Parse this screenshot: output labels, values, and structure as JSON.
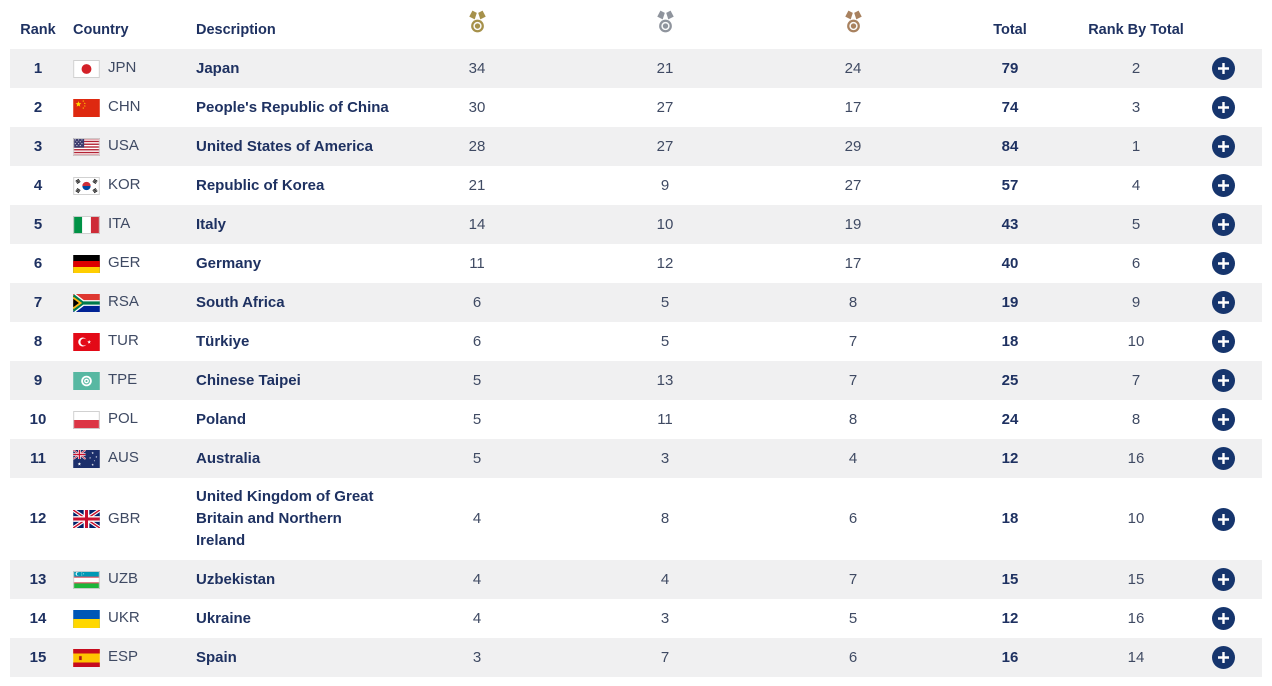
{
  "table": {
    "columns": {
      "rank": "Rank",
      "country": "Country",
      "description": "Description",
      "gold_icon": "gold-medal-icon",
      "silver_icon": "silver-medal-icon",
      "bronze_icon": "bronze-medal-icon",
      "total": "Total",
      "rank_by_total": "Rank By Total",
      "expand_icon": "plus-icon"
    },
    "colors": {
      "navy": "#1e3161",
      "slate": "#3f4a63",
      "stripe": "#f0f0f1",
      "gold": "#a6914b",
      "silver": "#8f949d",
      "bronze": "#a8815f",
      "button": "#16356d"
    },
    "rows": [
      {
        "rank": "1",
        "code": "JPN",
        "name": "Japan",
        "gold": "34",
        "silver": "21",
        "bronze": "24",
        "total": "79",
        "rank_by_total": "2"
      },
      {
        "rank": "2",
        "code": "CHN",
        "name": "People's Republic of China",
        "gold": "30",
        "silver": "27",
        "bronze": "17",
        "total": "74",
        "rank_by_total": "3"
      },
      {
        "rank": "3",
        "code": "USA",
        "name": "United States of America",
        "gold": "28",
        "silver": "27",
        "bronze": "29",
        "total": "84",
        "rank_by_total": "1"
      },
      {
        "rank": "4",
        "code": "KOR",
        "name": "Republic of Korea",
        "gold": "21",
        "silver": "9",
        "bronze": "27",
        "total": "57",
        "rank_by_total": "4"
      },
      {
        "rank": "5",
        "code": "ITA",
        "name": "Italy",
        "gold": "14",
        "silver": "10",
        "bronze": "19",
        "total": "43",
        "rank_by_total": "5"
      },
      {
        "rank": "6",
        "code": "GER",
        "name": "Germany",
        "gold": "11",
        "silver": "12",
        "bronze": "17",
        "total": "40",
        "rank_by_total": "6"
      },
      {
        "rank": "7",
        "code": "RSA",
        "name": "South Africa",
        "gold": "6",
        "silver": "5",
        "bronze": "8",
        "total": "19",
        "rank_by_total": "9"
      },
      {
        "rank": "8",
        "code": "TUR",
        "name": "Türkiye",
        "gold": "6",
        "silver": "5",
        "bronze": "7",
        "total": "18",
        "rank_by_total": "10"
      },
      {
        "rank": "9",
        "code": "TPE",
        "name": "Chinese Taipei",
        "gold": "5",
        "silver": "13",
        "bronze": "7",
        "total": "25",
        "rank_by_total": "7"
      },
      {
        "rank": "10",
        "code": "POL",
        "name": "Poland",
        "gold": "5",
        "silver": "11",
        "bronze": "8",
        "total": "24",
        "rank_by_total": "8"
      },
      {
        "rank": "11",
        "code": "AUS",
        "name": "Australia",
        "gold": "5",
        "silver": "3",
        "bronze": "4",
        "total": "12",
        "rank_by_total": "16"
      },
      {
        "rank": "12",
        "code": "GBR",
        "name": "United Kingdom of Great Britain and Northern Ireland",
        "gold": "4",
        "silver": "8",
        "bronze": "6",
        "total": "18",
        "rank_by_total": "10"
      },
      {
        "rank": "13",
        "code": "UZB",
        "name": "Uzbekistan",
        "gold": "4",
        "silver": "4",
        "bronze": "7",
        "total": "15",
        "rank_by_total": "15"
      },
      {
        "rank": "14",
        "code": "UKR",
        "name": "Ukraine",
        "gold": "4",
        "silver": "3",
        "bronze": "5",
        "total": "12",
        "rank_by_total": "16"
      },
      {
        "rank": "15",
        "code": "ESP",
        "name": "Spain",
        "gold": "3",
        "silver": "7",
        "bronze": "6",
        "total": "16",
        "rank_by_total": "14"
      }
    ]
  }
}
